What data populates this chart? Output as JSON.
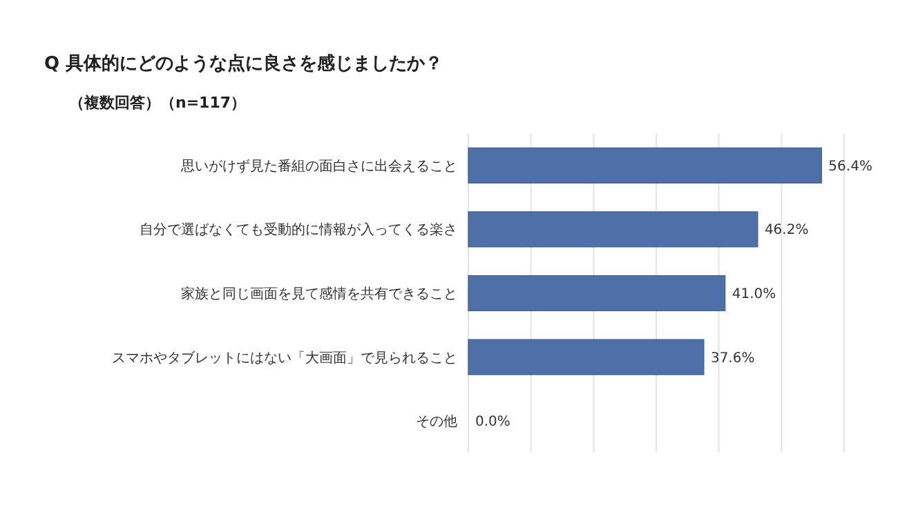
{
  "chart_data": {
    "type": "bar",
    "orientation": "horizontal",
    "title": "Q 具体的にどのような点に良さを感じましたか？",
    "subtitle": "（複数回答）（n=117）",
    "categories": [
      "思いがけず見た番組の面白さに出会えること",
      "自分で選ばなくても受動的に情報が入ってくる楽さ",
      "家族と同じ画面を見て感情を共有できること",
      "スマホやタブレットにはない「大画面」で見られること",
      "その他"
    ],
    "values": [
      56.4,
      46.2,
      41.0,
      37.6,
      0.0
    ],
    "value_labels": [
      "56.4%",
      "46.2%",
      "41.0%",
      "37.6%",
      "0.0%"
    ],
    "color": "#4e6fa7",
    "xlim": [
      0,
      60
    ],
    "xticks": [
      {
        "value": 0,
        "label": null
      },
      {
        "value": 10,
        "label": null
      },
      {
        "value": 20,
        "label": null
      },
      {
        "value": 30,
        "label": null
      },
      {
        "value": 40,
        "label": null
      },
      {
        "value": 50,
        "label": null
      },
      {
        "value": 60,
        "label": null
      }
    ],
    "tick_labels": "y",
    "grid": "x"
  }
}
